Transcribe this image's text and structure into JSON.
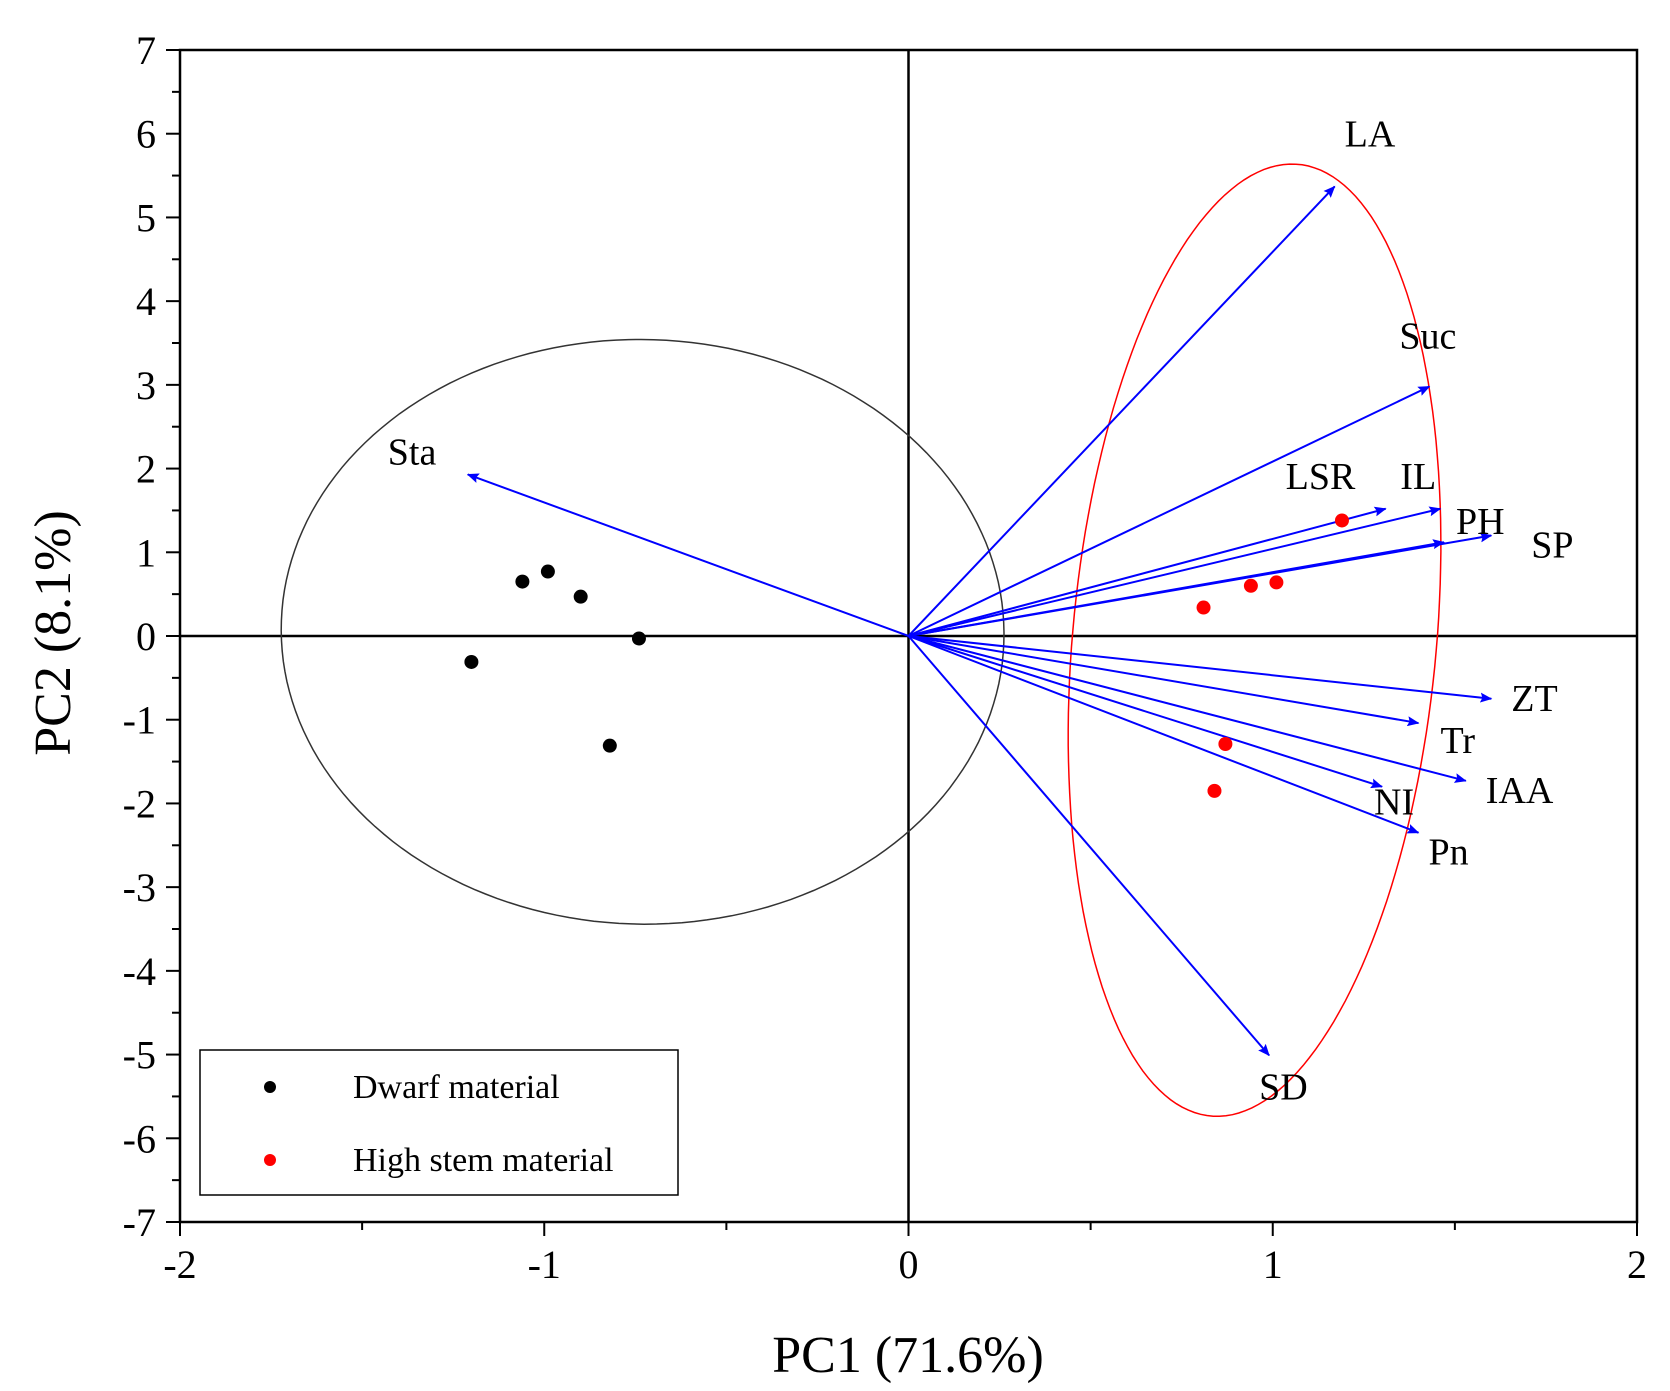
{
  "chart_data": {
    "type": "scatter",
    "subtype": "pca-biplot",
    "xlabel": "PC1 (71.6%)",
    "ylabel": "PC2 (8.1%)",
    "xlim": [
      -2,
      2
    ],
    "ylim": [
      -7,
      7
    ],
    "xticks": [
      "-2",
      "-1",
      "0",
      "1",
      "2"
    ],
    "yticks": [
      "-7",
      "-6",
      "-5",
      "-4",
      "-3",
      "-2",
      "-1",
      "0",
      "1",
      "2",
      "3",
      "4",
      "5",
      "6",
      "7"
    ],
    "grid": false,
    "zero_lines": true,
    "legend_position": "bottom-left",
    "colors": {
      "arrow": "#0000ff",
      "dwarf": "#000000",
      "high": "#ff0000",
      "dwarf_ellipse": "#333333",
      "high_ellipse": "#ff0000"
    },
    "series": [
      {
        "name": "Dwarf material",
        "color": "#000000",
        "points": [
          {
            "x": -1.06,
            "y": 0.65
          },
          {
            "x": -0.99,
            "y": 0.77
          },
          {
            "x": -0.9,
            "y": 0.47
          },
          {
            "x": -1.2,
            "y": -0.31
          },
          {
            "x": -0.74,
            "y": -0.03
          },
          {
            "x": -0.82,
            "y": -1.31
          }
        ],
        "ellipse": {
          "cx": -0.73,
          "cy": 0.05,
          "rx": 0.99,
          "ry": 3.5,
          "angle_deg": 28
        }
      },
      {
        "name": "High stem material",
        "color": "#ff0000",
        "points": [
          {
            "x": 1.19,
            "y": 1.38
          },
          {
            "x": 0.81,
            "y": 0.34
          },
          {
            "x": 0.94,
            "y": 0.6
          },
          {
            "x": 1.01,
            "y": 0.64
          },
          {
            "x": 0.87,
            "y": -1.29
          },
          {
            "x": 0.84,
            "y": -1.85
          }
        ],
        "ellipse": {
          "cx": 0.95,
          "cy": -0.05,
          "rx": 0.5,
          "ry": 5.7,
          "angle_deg": -4
        }
      }
    ],
    "loadings": [
      {
        "label": "LA",
        "x": 1.17,
        "y": 5.37
      },
      {
        "label": "Suc",
        "x": 1.43,
        "y": 2.98
      },
      {
        "label": "Sta",
        "x": -1.21,
        "y": 1.93
      },
      {
        "label": "LSR",
        "x": 1.31,
        "y": 1.52
      },
      {
        "label": "IL",
        "x": 1.46,
        "y": 1.52
      },
      {
        "label": "PH",
        "x": 1.47,
        "y": 1.12
      },
      {
        "label": "SP",
        "x": 1.6,
        "y": 1.2
      },
      {
        "label": "ZT",
        "x": 1.6,
        "y": -0.75
      },
      {
        "label": "Tr",
        "x": 1.4,
        "y": -1.04
      },
      {
        "label": "IAA",
        "x": 1.53,
        "y": -1.73
      },
      {
        "label": "NI",
        "x": 1.3,
        "y": -1.8
      },
      {
        "label": "Pn",
        "x": 1.4,
        "y": -2.35
      },
      {
        "label": "SD",
        "x": 0.99,
        "y": -5.01
      }
    ]
  }
}
